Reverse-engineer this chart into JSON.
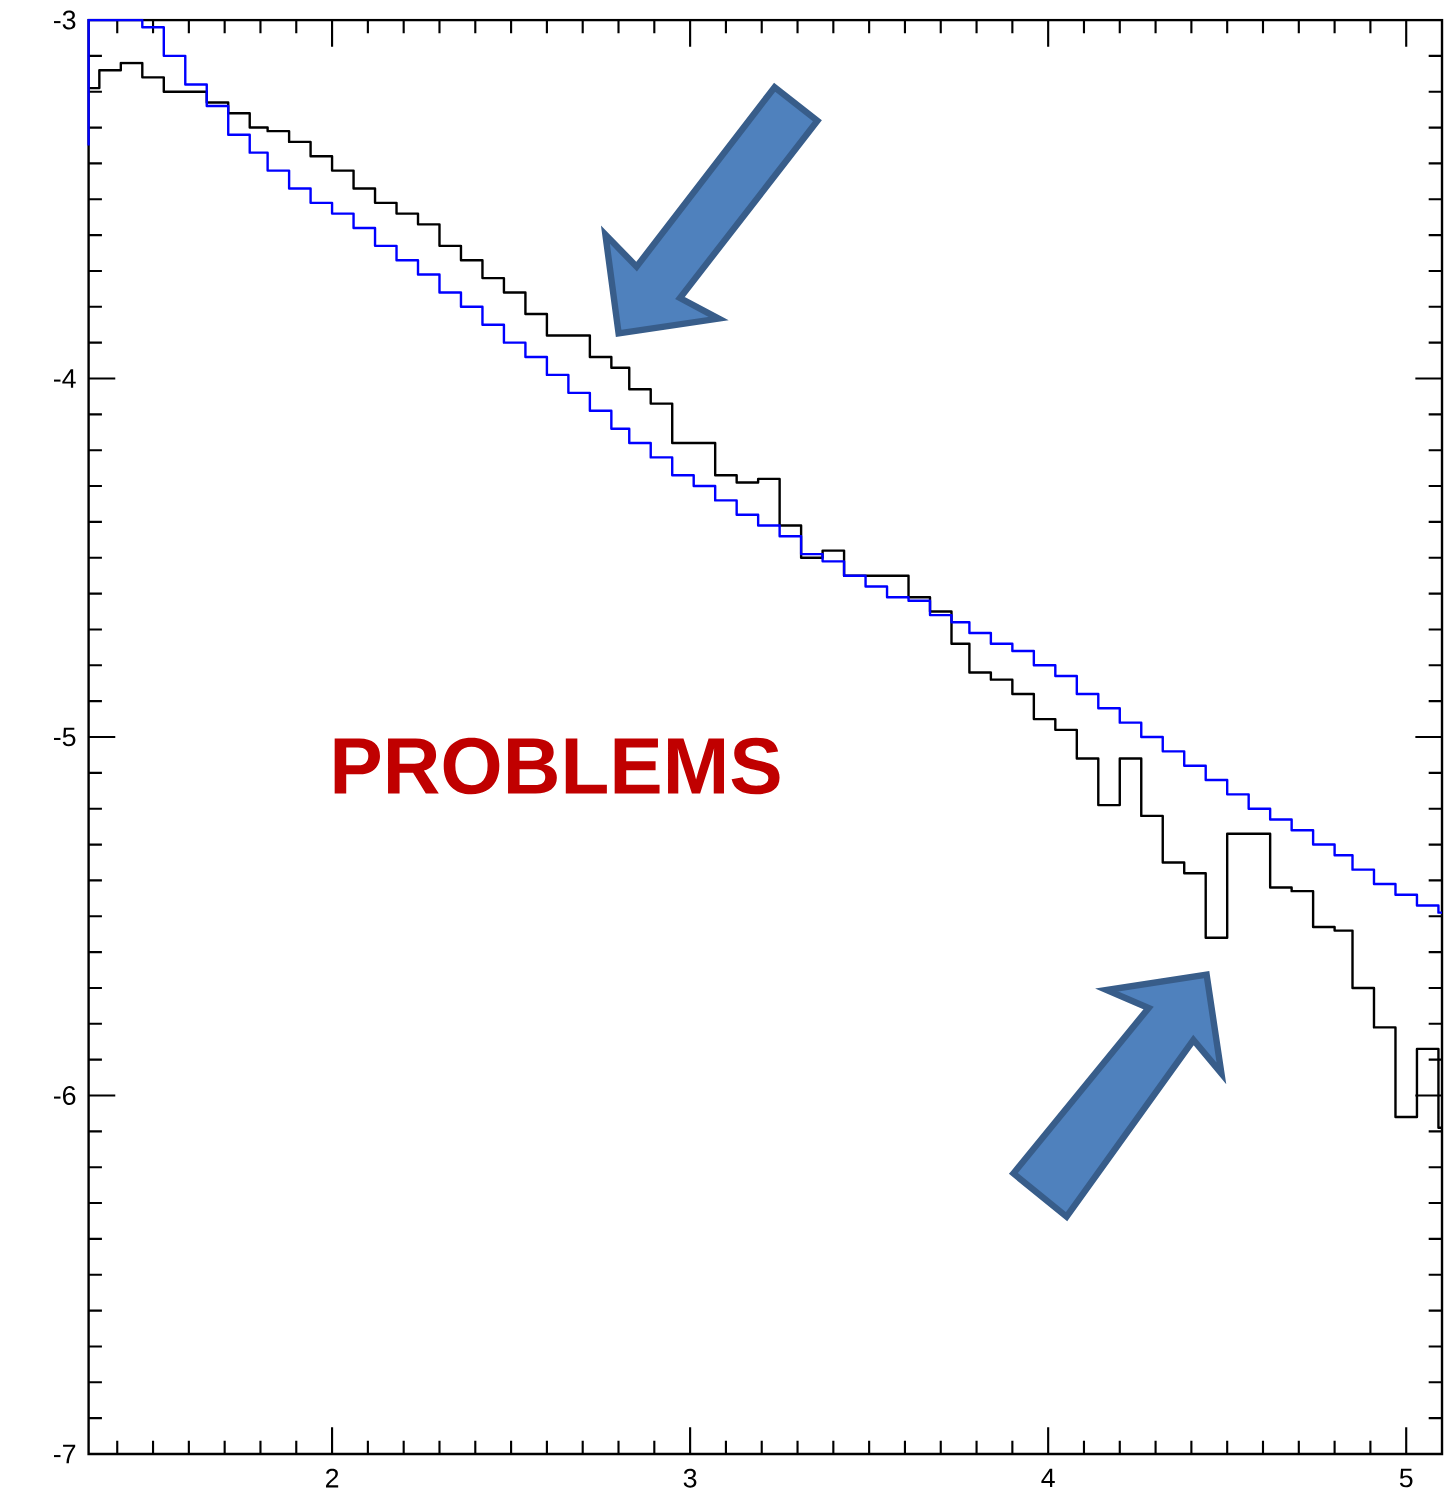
{
  "chart_data": {
    "type": "step",
    "annotations": [
      "PROBLEMS"
    ],
    "xlim": [
      1.32,
      5.1
    ],
    "xticks": [
      {
        "value": 1.4,
        "label": null
      },
      {
        "value": 1.5,
        "label": null
      },
      {
        "value": 1.6,
        "label": null
      },
      {
        "value": 1.7,
        "label": null
      },
      {
        "value": 1.8,
        "label": null
      },
      {
        "value": 1.9,
        "label": null
      },
      2,
      {
        "value": 2.1,
        "label": null
      },
      {
        "value": 2.2,
        "label": null
      },
      {
        "value": 2.3,
        "label": null
      },
      {
        "value": 2.4,
        "label": null
      },
      {
        "value": 2.5,
        "label": null
      },
      {
        "value": 2.6,
        "label": null
      },
      {
        "value": 2.7,
        "label": null
      },
      {
        "value": 2.8,
        "label": null
      },
      {
        "value": 2.9,
        "label": null
      },
      3,
      {
        "value": 3.1,
        "label": null
      },
      {
        "value": 3.2,
        "label": null
      },
      {
        "value": 3.3,
        "label": null
      },
      {
        "value": 3.4,
        "label": null
      },
      {
        "value": 3.5,
        "label": null
      },
      {
        "value": 3.6,
        "label": null
      },
      {
        "value": 3.7,
        "label": null
      },
      {
        "value": 3.8,
        "label": null
      },
      {
        "value": 3.9,
        "label": null
      },
      4,
      {
        "value": 4.1,
        "label": null
      },
      {
        "value": 4.2,
        "label": null
      },
      {
        "value": 4.3,
        "label": null
      },
      {
        "value": 4.4,
        "label": null
      },
      {
        "value": 4.5,
        "label": null
      },
      {
        "value": 4.6,
        "label": null
      },
      {
        "value": 4.7,
        "label": null
      },
      {
        "value": 4.8,
        "label": null
      },
      {
        "value": 4.9,
        "label": null
      },
      5
    ],
    "ylim": [
      -7,
      -3
    ],
    "yticks": [
      -7,
      {
        "value": -6.9,
        "label": null
      },
      {
        "value": -6.8,
        "label": null
      },
      {
        "value": -6.7,
        "label": null
      },
      {
        "value": -6.6,
        "label": null
      },
      {
        "value": -6.5,
        "label": null
      },
      {
        "value": -6.4,
        "label": null
      },
      {
        "value": -6.3,
        "label": null
      },
      {
        "value": -6.2,
        "label": null
      },
      {
        "value": -6.1,
        "label": null
      },
      -6,
      {
        "value": -5.9,
        "label": null
      },
      {
        "value": -5.8,
        "label": null
      },
      {
        "value": -5.7,
        "label": null
      },
      {
        "value": -5.6,
        "label": null
      },
      {
        "value": -5.5,
        "label": null
      },
      {
        "value": -5.4,
        "label": null
      },
      {
        "value": -5.3,
        "label": null
      },
      {
        "value": -5.2,
        "label": null
      },
      {
        "value": -5.1,
        "label": null
      },
      -5,
      {
        "value": -4.9,
        "label": null
      },
      {
        "value": -4.8,
        "label": null
      },
      {
        "value": -4.7,
        "label": null
      },
      {
        "value": -4.6,
        "label": null
      },
      {
        "value": -4.5,
        "label": null
      },
      {
        "value": -4.4,
        "label": null
      },
      {
        "value": -4.3,
        "label": null
      },
      {
        "value": -4.2,
        "label": null
      },
      {
        "value": -4.1,
        "label": null
      },
      -4,
      {
        "value": -3.9,
        "label": null
      },
      {
        "value": -3.8,
        "label": null
      },
      {
        "value": -3.7,
        "label": null
      },
      {
        "value": -3.6,
        "label": null
      },
      {
        "value": -3.5,
        "label": null
      },
      {
        "value": -3.4,
        "label": null
      },
      {
        "value": -3.3,
        "label": null
      },
      {
        "value": -3.2,
        "label": null
      },
      {
        "value": -3.1,
        "label": null
      },
      -3
    ],
    "series": [
      {
        "color": "#000000",
        "x": [
          1.32,
          1.35,
          1.41,
          1.47,
          1.53,
          1.59,
          1.65,
          1.71,
          1.77,
          1.82,
          1.88,
          1.94,
          2.0,
          2.06,
          2.12,
          2.18,
          2.24,
          2.3,
          2.36,
          2.42,
          2.48,
          2.54,
          2.6,
          2.66,
          2.72,
          2.78,
          2.83,
          2.89,
          2.95,
          3.01,
          3.07,
          3.13,
          3.19,
          3.25,
          3.31,
          3.37,
          3.43,
          3.49,
          3.55,
          3.61,
          3.67,
          3.73,
          3.78,
          3.84,
          3.9,
          3.96,
          4.02,
          4.08,
          4.14,
          4.2,
          4.26,
          4.32,
          4.38,
          4.44,
          4.5,
          4.56,
          4.62,
          4.68,
          4.74,
          4.8,
          4.85,
          4.91,
          4.97,
          5.03,
          5.09
        ],
        "values": [
          -3.19,
          -3.14,
          -3.12,
          -3.16,
          -3.2,
          -3.2,
          -3.23,
          -3.26,
          -3.3,
          -3.31,
          -3.34,
          -3.38,
          -3.42,
          -3.47,
          -3.51,
          -3.54,
          -3.57,
          -3.63,
          -3.67,
          -3.72,
          -3.76,
          -3.82,
          -3.88,
          -3.88,
          -3.94,
          -3.97,
          -4.03,
          -4.07,
          -4.18,
          -4.18,
          -4.27,
          -4.29,
          -4.28,
          -4.41,
          -4.5,
          -4.48,
          -4.55,
          -4.55,
          -4.55,
          -4.61,
          -4.65,
          -4.74,
          -4.82,
          -4.84,
          -4.88,
          -4.95,
          -4.98,
          -5.06,
          -5.19,
          -5.06,
          -5.22,
          -5.35,
          -5.38,
          -5.56,
          -5.27,
          -5.27,
          -5.42,
          -5.43,
          -5.53,
          -5.54,
          -5.7,
          -5.81,
          -6.06,
          -5.87,
          -6.09
        ]
      },
      {
        "color": "#0000ff",
        "x": [
          1.32,
          1.32,
          1.47,
          1.53,
          1.59,
          1.65,
          1.71,
          1.77,
          1.82,
          1.88,
          1.94,
          2.0,
          2.06,
          2.12,
          2.18,
          2.24,
          2.3,
          2.36,
          2.42,
          2.48,
          2.54,
          2.6,
          2.66,
          2.72,
          2.78,
          2.83,
          2.89,
          2.95,
          3.01,
          3.07,
          3.13,
          3.19,
          3.25,
          3.31,
          3.37,
          3.43,
          3.49,
          3.55,
          3.61,
          3.67,
          3.73,
          3.78,
          3.84,
          3.9,
          3.96,
          4.02,
          4.08,
          4.14,
          4.2,
          4.26,
          4.32,
          4.38,
          4.44,
          4.5,
          4.56,
          4.62,
          4.68,
          4.74,
          4.8,
          4.85,
          4.91,
          4.97,
          5.03,
          5.09
        ],
        "values": [
          -3.35,
          -3.0,
          -3.02,
          -3.1,
          -3.18,
          -3.24,
          -3.32,
          -3.37,
          -3.42,
          -3.47,
          -3.51,
          -3.54,
          -3.58,
          -3.63,
          -3.67,
          -3.71,
          -3.76,
          -3.8,
          -3.85,
          -3.9,
          -3.94,
          -3.99,
          -4.04,
          -4.09,
          -4.14,
          -4.18,
          -4.22,
          -4.27,
          -4.3,
          -4.34,
          -4.38,
          -4.41,
          -4.44,
          -4.49,
          -4.51,
          -4.55,
          -4.58,
          -4.61,
          -4.62,
          -4.66,
          -4.68,
          -4.71,
          -4.74,
          -4.76,
          -4.8,
          -4.83,
          -4.88,
          -4.92,
          -4.96,
          -5.0,
          -5.04,
          -5.08,
          -5.12,
          -5.16,
          -5.2,
          -5.23,
          -5.26,
          -5.3,
          -5.33,
          -5.37,
          -5.41,
          -5.44,
          -5.47,
          -5.49
        ]
      }
    ]
  }
}
